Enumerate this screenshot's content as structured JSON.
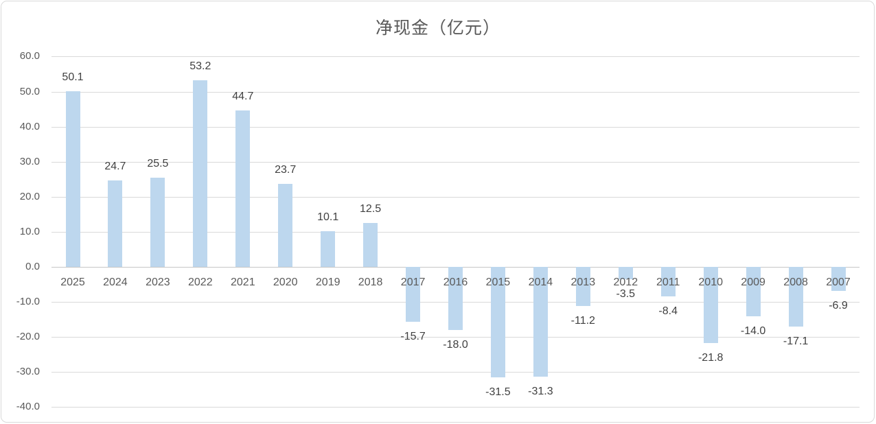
{
  "title": "净现金（亿元）",
  "colors": {
    "bar_fill": "#BDD7EE",
    "gridline": "#D9D9D9",
    "zero_axis": "#C6C6C6",
    "title_text": "#595959",
    "tick_text": "#595959",
    "value_text": "#404040",
    "frame_border": "#D9D9D9",
    "background": "#FFFFFF"
  },
  "chart_data": {
    "type": "bar",
    "title": "净现金（亿元）",
    "categories": [
      "2025",
      "2024",
      "2023",
      "2022",
      "2021",
      "2020",
      "2019",
      "2018",
      "2017",
      "2016",
      "2015",
      "2014",
      "2013",
      "2012",
      "2011",
      "2010",
      "2009",
      "2008",
      "2007"
    ],
    "values": [
      50.1,
      24.7,
      25.5,
      53.2,
      44.7,
      23.7,
      10.1,
      12.5,
      -15.7,
      -18.0,
      -31.5,
      -31.3,
      -11.2,
      -3.5,
      -8.4,
      -21.8,
      -14.0,
      -17.1,
      -6.9
    ],
    "value_labels": [
      "50.1",
      "24.7",
      "25.5",
      "53.2",
      "44.7",
      "23.7",
      "10.1",
      "12.5",
      "-15.7",
      "-18.0",
      "-31.5",
      "-31.3",
      "-11.2",
      "-3.5",
      "-8.4",
      "-21.8",
      "-14.0",
      "-17.1",
      "-6.9"
    ],
    "xlabel": "",
    "ylabel": "",
    "ylim": [
      -40,
      60
    ],
    "y_ticks": [
      "60.0",
      "50.0",
      "40.0",
      "30.0",
      "20.0",
      "10.0",
      "0.0",
      "-10.0",
      "-20.0",
      "-30.0",
      "-40.0"
    ],
    "y_tick_values": [
      60,
      50,
      40,
      30,
      20,
      10,
      0,
      -10,
      -20,
      -30,
      -40
    ],
    "grid": true,
    "legend_position": "none",
    "bar_color": "#BDD7EE",
    "label_position": "outside-end"
  }
}
